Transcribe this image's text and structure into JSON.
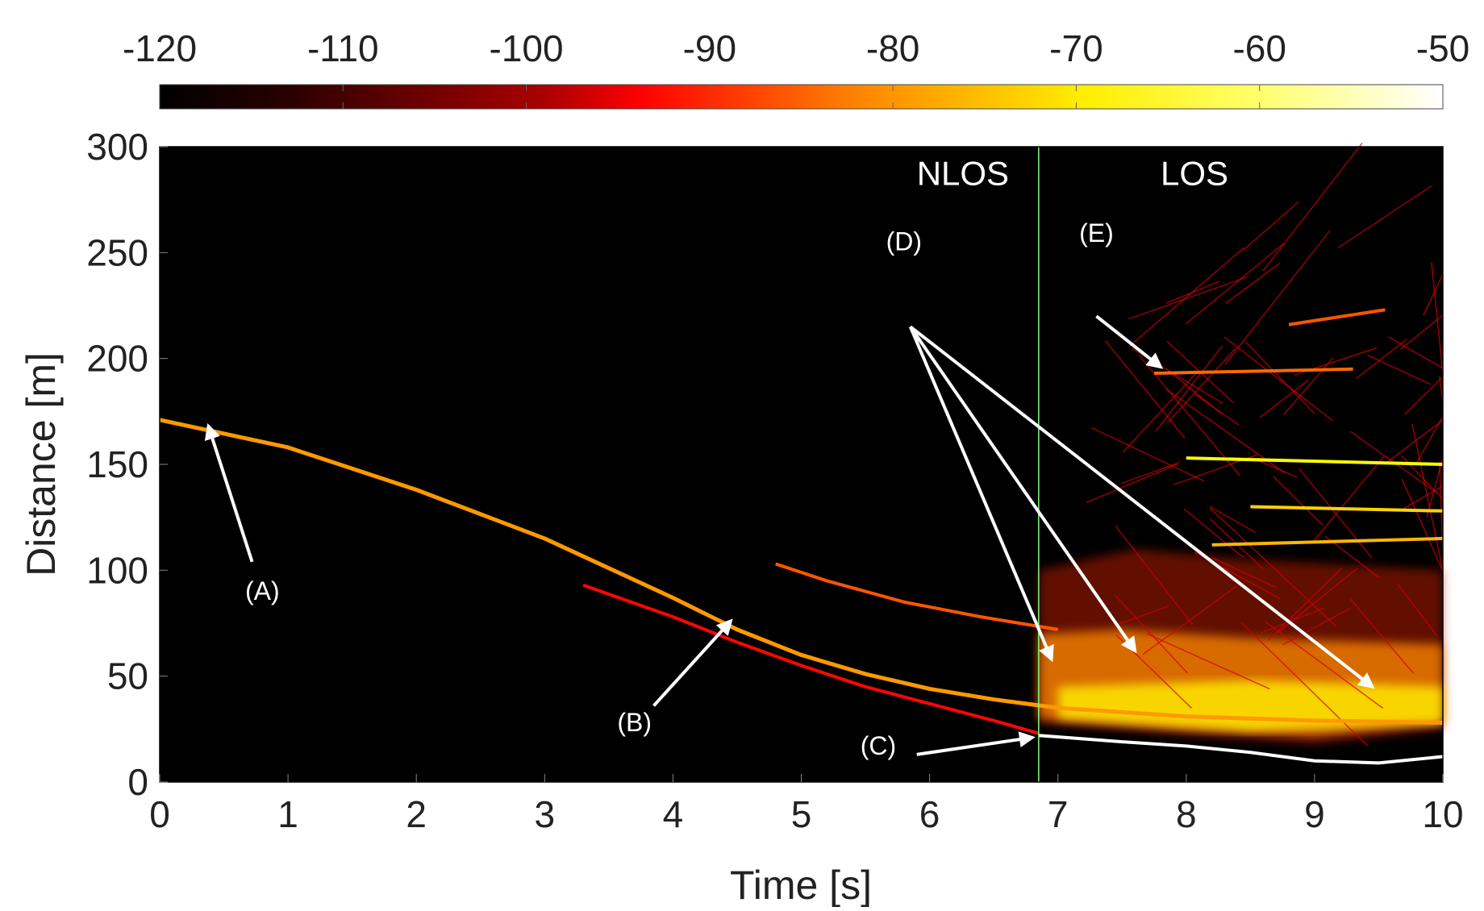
{
  "chart_data": {
    "type": "heatmap",
    "xlabel": "Time [s]",
    "ylabel": "Distance [m]",
    "xlim": [
      0,
      10
    ],
    "ylim": [
      0,
      300
    ],
    "xticks": [
      0,
      1,
      2,
      3,
      4,
      5,
      6,
      7,
      8,
      9,
      10
    ],
    "yticks": [
      0,
      50,
      100,
      150,
      200,
      250,
      300
    ],
    "colorbar": {
      "range": [
        -120,
        -50
      ],
      "ticks": [
        -120,
        -110,
        -100,
        -90,
        -80,
        -70,
        -60,
        -50
      ],
      "colormap": "hot"
    },
    "divider_time": 6.85,
    "regions": [
      {
        "label": "NLOS",
        "t": 5.9,
        "d": 282
      },
      {
        "label": "LOS",
        "t": 7.8,
        "d": 282
      }
    ],
    "annotations": [
      {
        "label": "(A)",
        "text_t": 0.8,
        "text_d": 86,
        "arrows": [
          {
            "from_t": 0.72,
            "from_d": 104,
            "to_t": 0.38,
            "to_d": 168
          }
        ]
      },
      {
        "label": "(B)",
        "text_t": 3.7,
        "text_d": 24,
        "arrows": [
          {
            "from_t": 3.85,
            "from_d": 36,
            "to_t": 4.45,
            "to_d": 76
          }
        ]
      },
      {
        "label": "(C)",
        "text_t": 5.6,
        "text_d": 13,
        "arrows": [
          {
            "from_t": 5.9,
            "from_d": 13,
            "to_t": 6.8,
            "to_d": 21
          }
        ]
      },
      {
        "label": "(D)",
        "text_t": 5.8,
        "text_d": 251,
        "arrows": [
          {
            "from_t": 5.85,
            "from_d": 215,
            "to_t": 6.95,
            "to_d": 58
          },
          {
            "from_t": 5.85,
            "from_d": 215,
            "to_t": 7.6,
            "to_d": 62
          },
          {
            "from_t": 5.85,
            "from_d": 215,
            "to_t": 9.45,
            "to_d": 45
          }
        ]
      },
      {
        "label": "(E)",
        "text_t": 7.3,
        "text_d": 255,
        "arrows": [
          {
            "from_t": 7.3,
            "from_d": 220,
            "to_t": 7.8,
            "to_d": 196
          }
        ]
      }
    ],
    "traces": [
      {
        "name": "direct-path",
        "level_dB": -78,
        "points": [
          [
            0,
            171
          ],
          [
            1,
            158
          ],
          [
            2,
            138
          ],
          [
            3,
            115
          ],
          [
            4,
            87
          ],
          [
            4.5,
            72
          ],
          [
            5,
            60
          ],
          [
            5.5,
            51
          ],
          [
            6,
            44
          ],
          [
            6.5,
            39
          ],
          [
            7,
            35
          ],
          [
            8,
            31
          ],
          [
            9,
            29
          ],
          [
            10,
            28
          ]
        ]
      },
      {
        "name": "faint-reflection",
        "level_dB": -93,
        "points": [
          [
            3.3,
            93
          ],
          [
            4,
            78
          ],
          [
            4.5,
            66
          ],
          [
            5,
            55
          ],
          [
            5.5,
            45
          ],
          [
            6,
            37
          ],
          [
            6.5,
            29
          ],
          [
            6.85,
            23
          ]
        ]
      },
      {
        "name": "upper-branch",
        "level_dB": -85,
        "points": [
          [
            4.8,
            103
          ],
          [
            5.2,
            95
          ],
          [
            5.8,
            85
          ],
          [
            6.4,
            78
          ],
          [
            7,
            72
          ]
        ]
      },
      {
        "name": "ground-reflection",
        "level_dB": -50,
        "points": [
          [
            6.85,
            22
          ],
          [
            7.5,
            19
          ],
          [
            8,
            17
          ],
          [
            8.5,
            14
          ],
          [
            9,
            10
          ],
          [
            9.5,
            9
          ],
          [
            10,
            12
          ]
        ]
      },
      {
        "name": "horizontal-E1",
        "level_dB": -83,
        "points": [
          [
            7.75,
            193
          ],
          [
            9.3,
            195
          ]
        ]
      },
      {
        "name": "horizontal-E2",
        "level_dB": -85,
        "points": [
          [
            8.8,
            216
          ],
          [
            9.55,
            223
          ]
        ]
      },
      {
        "name": "horizontal-E3",
        "level_dB": -68,
        "points": [
          [
            8,
            153
          ],
          [
            10,
            150
          ]
        ]
      },
      {
        "name": "horizontal-E4",
        "level_dB": -72,
        "points": [
          [
            8.5,
            130
          ],
          [
            10,
            128
          ]
        ]
      },
      {
        "name": "horizontal-E5",
        "level_dB": -75,
        "points": [
          [
            8.2,
            112
          ],
          [
            10,
            115
          ]
        ]
      }
    ]
  }
}
